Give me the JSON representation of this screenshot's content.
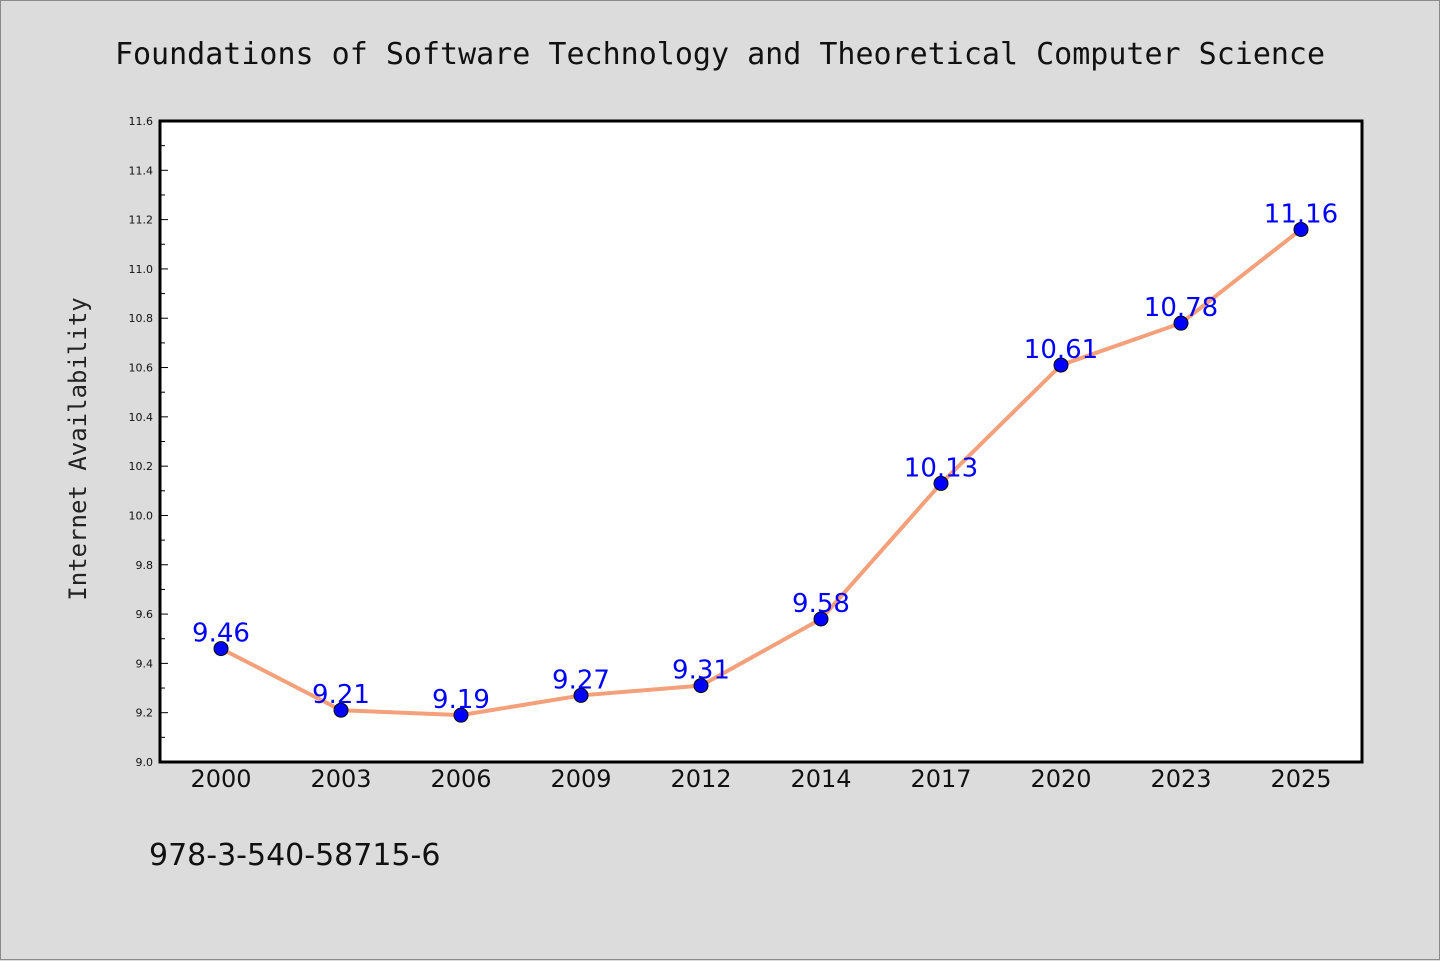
{
  "chart_data": {
    "type": "line",
    "title": "Foundations of Software Technology and Theoretical Computer Science",
    "xlabel": "",
    "ylabel": "Internet Availability",
    "categories": [
      "2000",
      "2003",
      "2006",
      "2009",
      "2012",
      "2014",
      "2017",
      "2020",
      "2023",
      "2025"
    ],
    "series": [
      {
        "values": [
          9.46,
          9.21,
          9.19,
          9.27,
          9.31,
          9.58,
          10.13,
          10.61,
          10.78,
          11.16
        ],
        "labels": [
          "9.46",
          "9.21",
          "9.19",
          "9.27",
          "9.31",
          "9.58",
          "10.13",
          "10.61",
          "10.78",
          "11.16"
        ],
        "line_color": "#f4a07a",
        "marker_color": "#0000ff",
        "label_color": "#0000ff"
      }
    ],
    "ylim": [
      9.0,
      11.6
    ],
    "yticks": [
      "9.0",
      "9.2",
      "9.4",
      "9.6",
      "9.8",
      "10.0",
      "10.2",
      "10.4",
      "10.6",
      "10.8",
      "11.0",
      "11.2",
      "11.4",
      "11.6"
    ],
    "grid": false,
    "legend": "none"
  },
  "footer": {
    "isbn": "978-3-540-58715-6"
  },
  "colors": {
    "background": "#dcdcdc",
    "plot_background": "#ffffff",
    "axis": "#000000"
  }
}
